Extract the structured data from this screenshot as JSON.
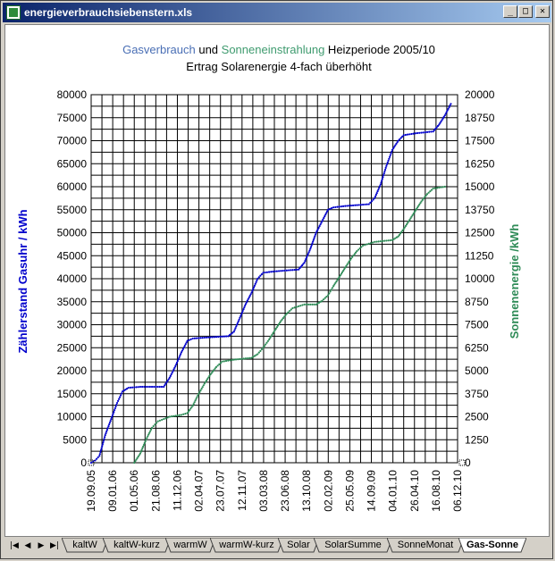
{
  "window": {
    "title": "energieverbrauchsiebenstern.xls",
    "buttons": {
      "minimize": "_",
      "restore": "□",
      "close": "✕"
    }
  },
  "chart": {
    "title_parts": [
      {
        "text": "Gasverbrauch",
        "color": "#4a6fb5"
      },
      {
        "text": " und ",
        "color": "#000000"
      },
      {
        "text": "Sonneneinstrahlung",
        "color": "#3f9b6f"
      },
      {
        "text": " Heizperiode 2005/10",
        "color": "#000000"
      }
    ],
    "subtitle": "Ertrag Solarenergie 4-fach überhöht",
    "left_axis_label": "Zählerstand Gasuhr / kWh",
    "right_axis_label": "Sonnenenergie /kWh",
    "left_color": "#0000cc",
    "right_color": "#2e8b57"
  },
  "chart_data": {
    "type": "line",
    "x_tick_labels": [
      "19.09.05",
      "09.01.06",
      "01.05.06",
      "21.08.06",
      "11.12.06",
      "02.04.07",
      "23.07.07",
      "12.11.07",
      "03.03.08",
      "23.06.08",
      "13.10.08",
      "02.02.09",
      "25.05.09",
      "14.09.09",
      "04.01.10",
      "26.04.10",
      "16.08.10",
      "06.12.10"
    ],
    "y_left_ticks": [
      "0",
      "5000",
      "10000",
      "15000",
      "20000",
      "25000",
      "30000",
      "35000",
      "40000",
      "45000",
      "50000",
      "55000",
      "60000",
      "65000",
      "70000",
      "75000",
      "80000"
    ],
    "y_right_ticks": [
      "0",
      "1250",
      "2500",
      "3750",
      "5000",
      "6250",
      "7500",
      "8750",
      "10000",
      "11250",
      "12500",
      "13750",
      "15000",
      "16250",
      "17500",
      "18750",
      "20000"
    ],
    "ylim_left": [
      0,
      80000
    ],
    "ylim_right": [
      0,
      20000
    ],
    "grid": true,
    "series": [
      {
        "name": "Gasverbrauch",
        "axis": "left",
        "color": "#0000cc",
        "points": [
          [
            "19.09.05",
            0
          ],
          [
            "10.10.05",
            500
          ],
          [
            "01.11.05",
            1500
          ],
          [
            "01.12.05",
            6000
          ],
          [
            "01.01.06",
            9500
          ],
          [
            "01.02.06",
            13000
          ],
          [
            "01.03.06",
            15500
          ],
          [
            "01.04.06",
            16300
          ],
          [
            "01.06.06",
            16500
          ],
          [
            "01.10.06",
            16500
          ],
          [
            "01.11.06",
            18500
          ],
          [
            "01.12.06",
            21000
          ],
          [
            "01.01.07",
            24000
          ],
          [
            "01.02.07",
            26500
          ],
          [
            "01.03.07",
            27000
          ],
          [
            "01.05.07",
            27200
          ],
          [
            "01.09.07",
            27500
          ],
          [
            "01.10.07",
            28500
          ],
          [
            "01.11.07",
            31500
          ],
          [
            "01.12.07",
            34500
          ],
          [
            "01.01.08",
            37000
          ],
          [
            "01.02.08",
            40000
          ],
          [
            "01.03.08",
            41300
          ],
          [
            "01.05.08",
            41600
          ],
          [
            "01.09.08",
            42000
          ],
          [
            "01.10.08",
            43500
          ],
          [
            "01.11.08",
            46500
          ],
          [
            "01.12.08",
            50000
          ],
          [
            "01.01.09",
            52500
          ],
          [
            "01.02.09",
            55000
          ],
          [
            "01.03.09",
            55500
          ],
          [
            "01.05.09",
            55800
          ],
          [
            "01.09.09",
            56200
          ],
          [
            "01.10.09",
            57500
          ],
          [
            "01.11.09",
            60500
          ],
          [
            "01.12.09",
            64500
          ],
          [
            "01.01.10",
            68000
          ],
          [
            "01.02.10",
            70000
          ],
          [
            "01.03.10",
            71200
          ],
          [
            "01.05.10",
            71600
          ],
          [
            "01.08.10",
            72000
          ],
          [
            "01.09.10",
            73500
          ],
          [
            "01.10.10",
            75500
          ],
          [
            "01.11.10",
            78000
          ]
        ]
      },
      {
        "name": "Sonneneinstrahlung",
        "axis": "right",
        "color": "#2e8b57",
        "points": [
          [
            "01.05.06",
            0
          ],
          [
            "01.06.06",
            500
          ],
          [
            "01.07.06",
            1250
          ],
          [
            "01.08.06",
            1900
          ],
          [
            "01.09.06",
            2250
          ],
          [
            "01.11.06",
            2500
          ],
          [
            "01.01.07",
            2600
          ],
          [
            "01.02.07",
            2700
          ],
          [
            "01.03.07",
            3100
          ],
          [
            "01.04.07",
            3750
          ],
          [
            "01.05.07",
            4300
          ],
          [
            "01.06.07",
            4800
          ],
          [
            "01.07.07",
            5200
          ],
          [
            "01.08.07",
            5500
          ],
          [
            "01.10.07",
            5600
          ],
          [
            "01.01.08",
            5700
          ],
          [
            "01.02.08",
            5900
          ],
          [
            "01.03.08",
            6250
          ],
          [
            "01.04.08",
            6700
          ],
          [
            "01.05.08",
            7200
          ],
          [
            "01.06.08",
            7700
          ],
          [
            "01.07.08",
            8100
          ],
          [
            "01.08.08",
            8400
          ],
          [
            "01.10.08",
            8600
          ],
          [
            "01.12.08",
            8600
          ],
          [
            "01.01.09",
            8800
          ],
          [
            "01.02.09",
            9100
          ],
          [
            "01.03.09",
            9600
          ],
          [
            "01.04.09",
            10100
          ],
          [
            "01.05.09",
            10600
          ],
          [
            "01.06.09",
            11100
          ],
          [
            "01.07.09",
            11500
          ],
          [
            "01.08.09",
            11800
          ],
          [
            "01.10.09",
            12000
          ],
          [
            "01.01.10",
            12100
          ],
          [
            "01.02.10",
            12300
          ],
          [
            "01.03.10",
            12700
          ],
          [
            "01.04.10",
            13200
          ],
          [
            "01.05.10",
            13700
          ],
          [
            "01.06.10",
            14200
          ],
          [
            "01.07.10",
            14600
          ],
          [
            "01.08.10",
            14900
          ],
          [
            "01.10.10",
            15000
          ]
        ]
      }
    ]
  },
  "sheet_tabs": {
    "nav": [
      "|◀",
      "◀",
      "▶",
      "▶|"
    ],
    "tabs": [
      "kaltW",
      "kaltW-kurz",
      "warmW",
      "warmW-kurz",
      "Solar",
      "SolarSumme",
      "SonneMonat",
      "Gas-Sonne"
    ],
    "active": "Gas-Sonne"
  }
}
